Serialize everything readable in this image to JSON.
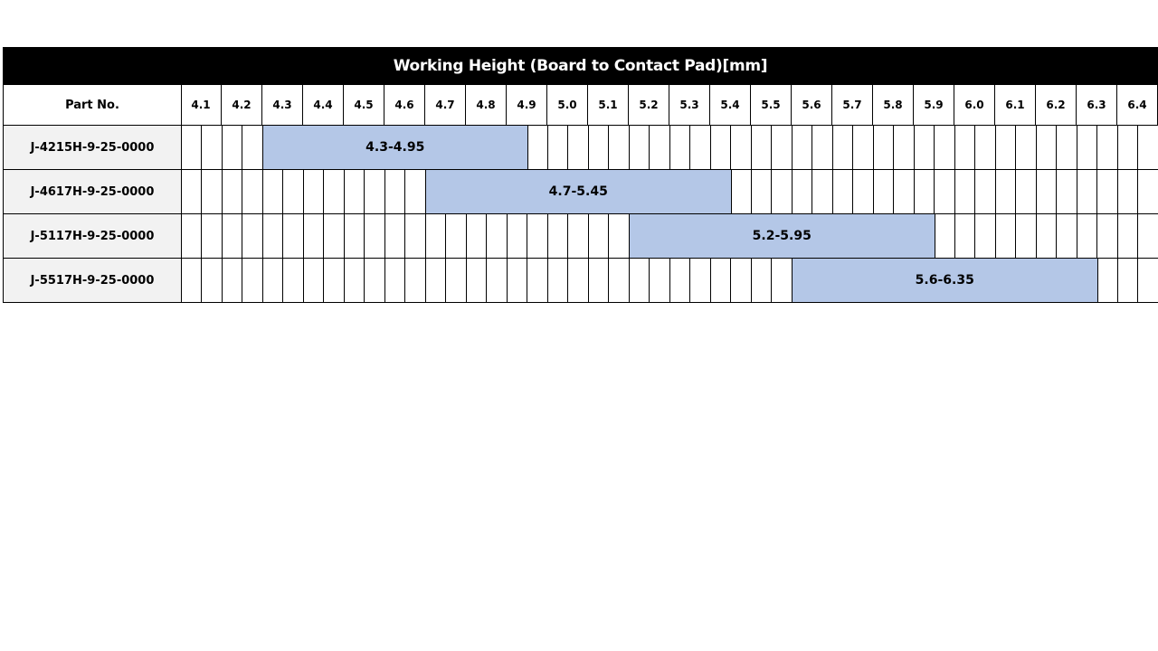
{
  "title": "Working Height (Board to Contact Pad)[mm]",
  "part_header": "Part No.",
  "columns": [
    "4.1",
    "4.2",
    "4.3",
    "4.4",
    "4.5",
    "4.6",
    "4.7",
    "4.8",
    "4.9",
    "5.0",
    "5.1",
    "5.2",
    "5.3",
    "5.4",
    "5.5",
    "5.6",
    "5.7",
    "5.8",
    "5.9",
    "6.0",
    "6.1",
    "6.2",
    "6.3",
    "6.4"
  ],
  "bar_color": "#b4c7e7",
  "part_column_color": "#f2f2f2",
  "rows": [
    {
      "part": "J-4215H-9-25-0000",
      "range_label": "4.3-4.95",
      "start": 4.3,
      "end": 4.95
    },
    {
      "part": "J-4617H-9-25-0000",
      "range_label": "4.7-5.45",
      "start": 4.7,
      "end": 5.45
    },
    {
      "part": "J-5117H-9-25-0000",
      "range_label": "5.2-5.95",
      "start": 5.2,
      "end": 5.95
    },
    {
      "part": "J-5517H-9-25-0000",
      "range_label": "5.6-6.35",
      "start": 5.6,
      "end": 6.35
    }
  ]
}
